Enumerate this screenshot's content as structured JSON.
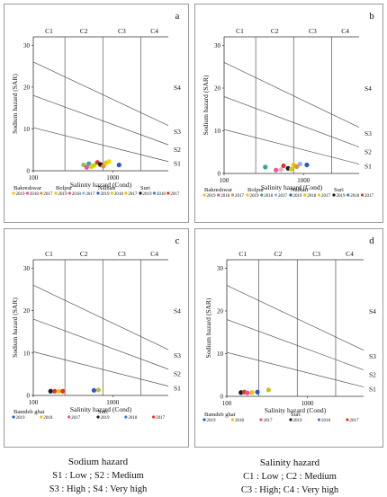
{
  "chart_data": [
    {
      "type": "scatter",
      "panel_label": "a",
      "xlabel": "Salinity hazard (Cond)",
      "ylabel": "Sodium hazard (SAR)",
      "xscale": "log",
      "xlim": [
        100,
        5000
      ],
      "ylim": [
        0,
        32
      ],
      "x_ticks": [
        100,
        1000
      ],
      "y_ticks": [
        0,
        10,
        20,
        30
      ],
      "salinity_classes": [
        "C1",
        "C2",
        "C3",
        "C4"
      ],
      "sodium_classes": [
        "S1",
        "S2",
        "S3",
        "S4"
      ],
      "legend_groups": [
        {
          "name": "Bakreshwar",
          "entries": [
            {
              "label": "2019",
              "color": "#f2c200"
            },
            {
              "label": "2018",
              "color": "#e8559b"
            },
            {
              "label": "2017",
              "color": "#e98f2d"
            }
          ]
        },
        {
          "name": "Bolpur",
          "entries": [
            {
              "label": "2019",
              "color": "#f2c200"
            },
            {
              "label": "2018",
              "color": "#e8559b"
            },
            {
              "label": "2017",
              "color": "#8ab4f8"
            }
          ]
        },
        {
          "name": "Nalhati",
          "entries": [
            {
              "label": "2019",
              "color": "#2f56c9"
            },
            {
              "label": "2018",
              "color": "#c7d400"
            },
            {
              "label": "2017",
              "color": "#f2c200"
            }
          ]
        },
        {
          "name": "Suri",
          "entries": [
            {
              "label": "2019",
              "color": "#1a1a1a"
            },
            {
              "label": "2018",
              "color": "#3b7ddd"
            },
            {
              "label": "2017",
              "color": "#d83a2a"
            }
          ]
        }
      ],
      "points": [
        {
          "x": 430,
          "y": 1.4,
          "color": "#8fbc6a"
        },
        {
          "x": 470,
          "y": 0.8,
          "color": "#e8559b"
        },
        {
          "x": 500,
          "y": 1.7,
          "color": "#3aa39a"
        },
        {
          "x": 540,
          "y": 1.0,
          "color": "#f2c200"
        },
        {
          "x": 580,
          "y": 1.3,
          "color": "#c7d400"
        },
        {
          "x": 640,
          "y": 2.0,
          "color": "#d83a2a"
        },
        {
          "x": 700,
          "y": 1.5,
          "color": "#1a1a1a"
        },
        {
          "x": 760,
          "y": 1.1,
          "color": "#e98f2d"
        },
        {
          "x": 820,
          "y": 1.9,
          "color": "#f2c200"
        },
        {
          "x": 900,
          "y": 2.2,
          "color": "#e8e200"
        },
        {
          "x": 1200,
          "y": 1.4,
          "color": "#2f56c9"
        }
      ]
    },
    {
      "type": "scatter",
      "panel_label": "b",
      "xlabel": "Salinity hazard (Cond)",
      "ylabel": "Sodium hazard (SAR)",
      "xscale": "log",
      "xlim": [
        100,
        5000
      ],
      "ylim": [
        0,
        32
      ],
      "x_ticks": [
        100,
        1000
      ],
      "y_ticks": [
        0,
        10,
        20,
        30
      ],
      "salinity_classes": [
        "C1",
        "C2",
        "C3",
        "C4"
      ],
      "sodium_classes": [
        "S1",
        "S2",
        "S3",
        "S4"
      ],
      "legend_groups": [
        {
          "name": "Bakreshwar",
          "entries": [
            {
              "label": "2019",
              "color": "#f2c200"
            },
            {
              "label": "2018",
              "color": "#e8559b"
            },
            {
              "label": "2017",
              "color": "#e98f2d"
            }
          ]
        },
        {
          "name": "Bolpur",
          "entries": [
            {
              "label": "2019",
              "color": "#f2c200"
            },
            {
              "label": "2018",
              "color": "#3aa39a"
            },
            {
              "label": "2017",
              "color": "#8ab4f8"
            }
          ]
        },
        {
          "name": "Nalhati",
          "entries": [
            {
              "label": "2019",
              "color": "#2f56c9"
            },
            {
              "label": "2018",
              "color": "#c7d400"
            },
            {
              "label": "2017",
              "color": "#f2c200"
            }
          ]
        },
        {
          "name": "Suri",
          "entries": [
            {
              "label": "2019",
              "color": "#1a1a1a"
            },
            {
              "label": "2018",
              "color": "#3b7ddd"
            },
            {
              "label": "2017",
              "color": "#d83a2a"
            }
          ]
        }
      ],
      "points": [
        {
          "x": 330,
          "y": 1.5,
          "color": "#3aa39a"
        },
        {
          "x": 450,
          "y": 0.8,
          "color": "#e8559b"
        },
        {
          "x": 520,
          "y": 0.9,
          "color": "#f7a9c8"
        },
        {
          "x": 560,
          "y": 1.8,
          "color": "#d83a2a"
        },
        {
          "x": 640,
          "y": 1.2,
          "color": "#1a1a1a"
        },
        {
          "x": 700,
          "y": 1.0,
          "color": "#c7d400"
        },
        {
          "x": 750,
          "y": 2.0,
          "color": "#f2c200"
        },
        {
          "x": 820,
          "y": 1.6,
          "color": "#e98f2d"
        },
        {
          "x": 900,
          "y": 2.2,
          "color": "#8ab4f8"
        },
        {
          "x": 1100,
          "y": 2.0,
          "color": "#2f56c9"
        }
      ]
    },
    {
      "type": "scatter",
      "panel_label": "c",
      "xlabel": "Salinity hazard (Cond)",
      "ylabel": "Sodium hazard (SAR)",
      "xscale": "log",
      "xlim": [
        100,
        5000
      ],
      "ylim": [
        0,
        32
      ],
      "x_ticks": [
        100,
        1000
      ],
      "y_ticks": [
        0,
        10,
        20,
        30
      ],
      "salinity_classes": [
        "C1",
        "C2",
        "C3",
        "C4"
      ],
      "sodium_classes": [
        "S1",
        "S2",
        "S3",
        "S4"
      ],
      "legend_groups": [
        {
          "name": "Bamdeb ghat",
          "entries": [
            {
              "label": "2019",
              "color": "#2f56c9"
            },
            {
              "label": "2018",
              "color": "#f2c200"
            },
            {
              "label": "2017",
              "color": "#e8559b"
            }
          ]
        },
        {
          "name": "Suri",
          "entries": [
            {
              "label": "2019",
              "color": "#1a1a1a"
            },
            {
              "label": "2018",
              "color": "#3b7ddd"
            },
            {
              "label": "2017",
              "color": "#d83a2a"
            }
          ]
        }
      ],
      "points": [
        {
          "x": 165,
          "y": 1.0,
          "color": "#1a1a1a"
        },
        {
          "x": 185,
          "y": 1.0,
          "color": "#d83a2a"
        },
        {
          "x": 210,
          "y": 1.0,
          "color": "#f2c200"
        },
        {
          "x": 235,
          "y": 1.0,
          "color": "#d83a2a"
        },
        {
          "x": 580,
          "y": 1.2,
          "color": "#2f56c9"
        },
        {
          "x": 660,
          "y": 1.3,
          "color": "#c7c02a"
        }
      ]
    },
    {
      "type": "scatter",
      "panel_label": "d",
      "xlabel": "Salinity hazard (Cond)",
      "ylabel": "Sodium hazard (SAR)",
      "xscale": "log",
      "xlim": [
        100,
        5000
      ],
      "ylim": [
        0,
        32
      ],
      "x_ticks": [
        100,
        1000
      ],
      "y_ticks": [
        0,
        10,
        20,
        30
      ],
      "salinity_classes": [
        "C1",
        "C2",
        "C3",
        "C4"
      ],
      "sodium_classes": [
        "S1",
        "S2",
        "S3",
        "S4"
      ],
      "legend_groups": [
        {
          "name": "Bamdeb ghat",
          "entries": [
            {
              "label": "2019",
              "color": "#2f56c9"
            },
            {
              "label": "2018",
              "color": "#f2c200"
            },
            {
              "label": "2017",
              "color": "#e8559b"
            }
          ]
        },
        {
          "name": "Suri",
          "entries": [
            {
              "label": "2019",
              "color": "#1a1a1a"
            },
            {
              "label": "2018",
              "color": "#3b7ddd"
            },
            {
              "label": "2017",
              "color": "#d83a2a"
            }
          ]
        }
      ],
      "points": [
        {
          "x": 150,
          "y": 0.9,
          "color": "#1a1a1a"
        },
        {
          "x": 165,
          "y": 1.0,
          "color": "#d83a2a"
        },
        {
          "x": 180,
          "y": 0.8,
          "color": "#e8559b"
        },
        {
          "x": 205,
          "y": 0.9,
          "color": "#f2c200"
        },
        {
          "x": 240,
          "y": 1.0,
          "color": "#2f56c9"
        },
        {
          "x": 330,
          "y": 1.5,
          "color": "#c7c02a"
        }
      ]
    }
  ],
  "footnotes": {
    "sodium": {
      "title": "Sodium hazard",
      "line1": "S1  : Low ; S2  : Medium",
      "line2": "S3  : High ; S4  : Very high"
    },
    "salinity": {
      "title": "Salinity hazard",
      "line1": "C1  : Low ; C2  : Medium",
      "line2": "C3  : High; C4  : Very high"
    }
  }
}
